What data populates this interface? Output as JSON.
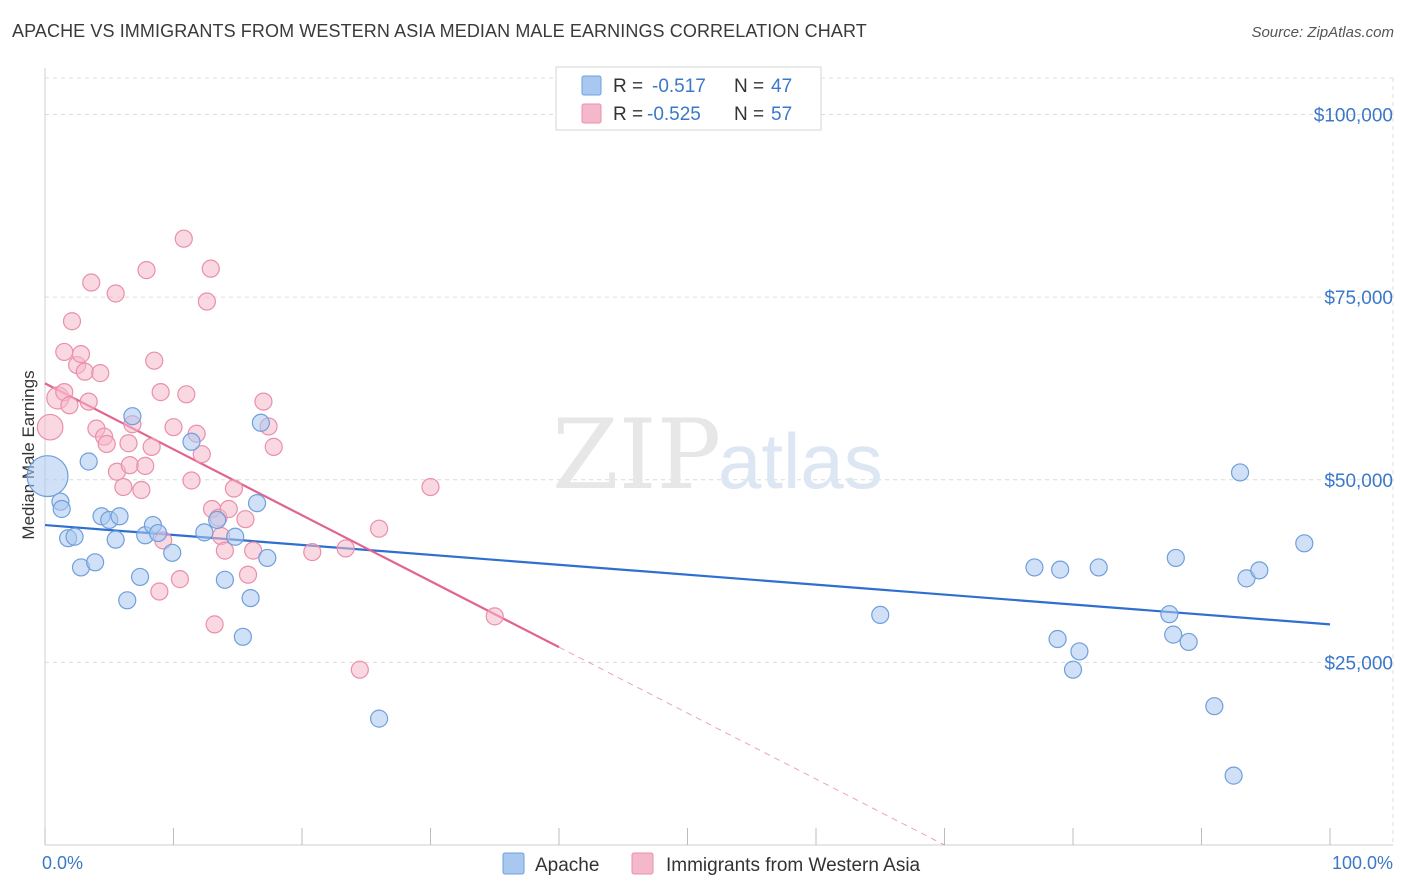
{
  "header": {
    "title": "APACHE VS IMMIGRANTS FROM WESTERN ASIA MEDIAN MALE EARNINGS CORRELATION CHART",
    "source": "Source: ZipAtlas.com"
  },
  "watermark": {
    "zip": "ZIP",
    "atlas": "atlas"
  },
  "legend": {
    "r_label": "R =",
    "n_label": "N =",
    "rows": [
      {
        "r": "-0.517",
        "n": "47"
      },
      {
        "r": "-0.525",
        "n": "57"
      }
    ]
  },
  "colors": {
    "apache_fill": "#a9c8f0",
    "apache_stroke": "#6f9fdc",
    "apache_line": "#2f6fcf",
    "western_fill": "#f5b8cb",
    "western_stroke": "#ea8fac",
    "western_line": "#e0648f",
    "label_blue": "#3b78c9"
  },
  "chart_data": {
    "type": "scatter",
    "title": "APACHE VS IMMIGRANTS FROM WESTERN ASIA MEDIAN MALE EARNINGS CORRELATION CHART",
    "xlabel": "",
    "ylabel": "Median Male Earnings",
    "xlim": [
      0,
      100
    ],
    "ylim": [
      0,
      105000
    ],
    "x_tick_labels": [
      "0.0%",
      "100.0%"
    ],
    "y_ticks": [
      25000,
      50000,
      75000,
      100000
    ],
    "y_tick_labels": [
      "$25,000",
      "$50,000",
      "$75,000",
      "$100,000"
    ],
    "grid": true,
    "legend_position": "bottom",
    "series": [
      {
        "name": "Apache",
        "r": -0.517,
        "n": 47,
        "trend": {
          "x0": 0,
          "y0": 43800,
          "x1": 100,
          "y1": 30200,
          "dashed_from": null
        },
        "points": [
          [
            0.2,
            50500,
            2.4
          ],
          [
            1.2,
            47000,
            1
          ],
          [
            1.3,
            46000,
            1
          ],
          [
            1.8,
            42000,
            1
          ],
          [
            2.3,
            42200,
            1
          ],
          [
            2.8,
            38000,
            1
          ],
          [
            3.4,
            52500,
            1
          ],
          [
            3.9,
            38700,
            1
          ],
          [
            4.4,
            45000,
            1
          ],
          [
            5.0,
            44500,
            1
          ],
          [
            5.5,
            41800,
            1
          ],
          [
            5.8,
            45000,
            1
          ],
          [
            6.4,
            33500,
            1
          ],
          [
            6.8,
            58700,
            1
          ],
          [
            7.4,
            36700,
            1
          ],
          [
            7.8,
            42400,
            1
          ],
          [
            8.4,
            43800,
            1
          ],
          [
            8.8,
            42700,
            1
          ],
          [
            9.9,
            40000,
            1
          ],
          [
            11.4,
            55200,
            1
          ],
          [
            12.4,
            42800,
            1
          ],
          [
            13.4,
            44500,
            1
          ],
          [
            14.0,
            36300,
            1
          ],
          [
            14.8,
            42200,
            1
          ],
          [
            15.4,
            28500,
            1
          ],
          [
            16.0,
            33800,
            1
          ],
          [
            16.5,
            46800,
            1
          ],
          [
            16.8,
            57800,
            1
          ],
          [
            17.3,
            39300,
            1
          ],
          [
            26.0,
            17300,
            1
          ],
          [
            65.0,
            31500,
            1
          ],
          [
            77.0,
            38000,
            1
          ],
          [
            78.8,
            28200,
            1
          ],
          [
            79.0,
            37700,
            1
          ],
          [
            80.0,
            24000,
            1
          ],
          [
            80.5,
            26500,
            1
          ],
          [
            82.0,
            38000,
            1
          ],
          [
            87.5,
            31600,
            1
          ],
          [
            87.8,
            28800,
            1
          ],
          [
            88.0,
            39300,
            1
          ],
          [
            89.0,
            27800,
            1
          ],
          [
            91.0,
            19000,
            1
          ],
          [
            92.5,
            9500,
            1
          ],
          [
            93.0,
            51000,
            1
          ],
          [
            93.5,
            36500,
            1
          ],
          [
            94.5,
            37600,
            1
          ],
          [
            98.0,
            41300,
            1
          ]
        ]
      },
      {
        "name": "Immigrants from Western Asia",
        "r": -0.525,
        "n": 57,
        "trend": {
          "x0": 0,
          "y0": 63200,
          "x1": 70,
          "y1": 0,
          "dashed_from": 40
        },
        "points": [
          [
            0.4,
            57200,
            1.5
          ],
          [
            1.0,
            61200,
            1.3
          ],
          [
            1.5,
            62000,
            1
          ],
          [
            1.9,
            60200,
            1
          ],
          [
            2.1,
            71700,
            1
          ],
          [
            1.5,
            67500,
            1
          ],
          [
            2.5,
            65700,
            1
          ],
          [
            2.8,
            67200,
            1
          ],
          [
            3.1,
            64800,
            1
          ],
          [
            3.4,
            60700,
            1
          ],
          [
            3.6,
            77000,
            1
          ],
          [
            4.0,
            57000,
            1
          ],
          [
            4.3,
            64600,
            1
          ],
          [
            4.6,
            55900,
            1
          ],
          [
            4.8,
            54900,
            1
          ],
          [
            5.5,
            75500,
            1
          ],
          [
            5.6,
            51100,
            1
          ],
          [
            6.1,
            49000,
            1
          ],
          [
            6.5,
            55000,
            1
          ],
          [
            6.6,
            52000,
            1
          ],
          [
            6.8,
            57600,
            1
          ],
          [
            7.5,
            48600,
            1
          ],
          [
            7.8,
            51900,
            1
          ],
          [
            7.9,
            78700,
            1
          ],
          [
            8.3,
            54500,
            1
          ],
          [
            8.5,
            66300,
            1
          ],
          [
            8.9,
            34700,
            1
          ],
          [
            9.2,
            41700,
            1
          ],
          [
            10.0,
            57200,
            1
          ],
          [
            10.5,
            36400,
            1
          ],
          [
            10.8,
            83000,
            1
          ],
          [
            11.0,
            61700,
            1
          ],
          [
            11.4,
            49900,
            1
          ],
          [
            11.8,
            56300,
            1
          ],
          [
            12.2,
            53500,
            1
          ],
          [
            12.6,
            74400,
            1
          ],
          [
            12.9,
            78900,
            1
          ],
          [
            13.0,
            46000,
            1
          ],
          [
            13.2,
            30200,
            1
          ],
          [
            13.5,
            44800,
            1
          ],
          [
            13.7,
            42300,
            1
          ],
          [
            14.0,
            40300,
            1
          ],
          [
            14.3,
            46000,
            1
          ],
          [
            14.7,
            48800,
            1
          ],
          [
            15.6,
            44600,
            1
          ],
          [
            15.8,
            37000,
            1
          ],
          [
            16.2,
            40300,
            1
          ],
          [
            17.0,
            60700,
            1
          ],
          [
            17.4,
            57300,
            1
          ],
          [
            17.8,
            54500,
            1
          ],
          [
            20.8,
            40100,
            1
          ],
          [
            23.4,
            40600,
            1
          ],
          [
            24.5,
            24000,
            1
          ],
          [
            26.0,
            43300,
            1
          ],
          [
            30.0,
            49000,
            1
          ],
          [
            35.0,
            31300,
            1
          ],
          [
            9.0,
            62000,
            1
          ]
        ]
      }
    ]
  },
  "bottom_legend": {
    "items": [
      "Apache",
      "Immigrants from Western Asia"
    ]
  }
}
